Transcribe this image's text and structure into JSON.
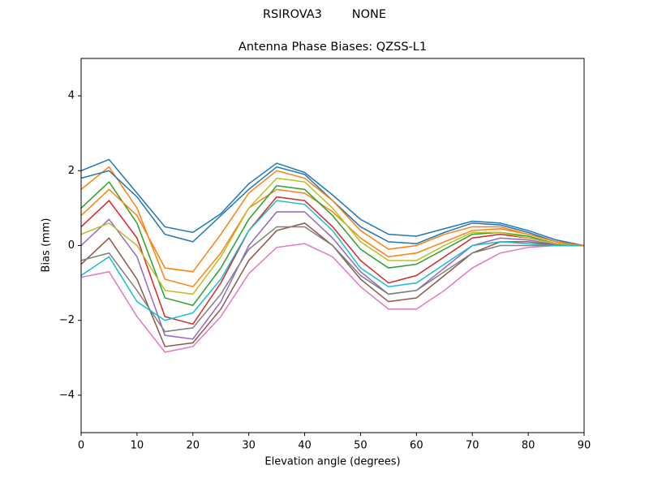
{
  "chart_data": {
    "type": "line",
    "suptitle": "RSIROVA3        NONE",
    "title": "Antenna Phase Biases: QZSS-L1",
    "x_label": "Elevation angle (degrees)",
    "y_label": "Bias (mm)",
    "x": [
      0,
      5,
      10,
      15,
      20,
      25,
      30,
      35,
      40,
      45,
      50,
      55,
      60,
      65,
      70,
      75,
      80,
      85,
      90
    ],
    "xlim": [
      0,
      90
    ],
    "xticks": [
      0,
      10,
      20,
      30,
      40,
      50,
      60,
      70,
      80,
      90
    ],
    "ylim": [
      -5,
      5
    ],
    "yticks": [
      {
        "value": -4,
        "label": "−4"
      },
      {
        "value": -2,
        "label": "−2"
      },
      0,
      2,
      4
    ],
    "grid": false,
    "series": [
      {
        "color": "#1f77b4",
        "values": [
          2.0,
          2.3,
          1.4,
          0.5,
          0.35,
          0.85,
          1.65,
          2.2,
          1.95,
          1.35,
          0.7,
          0.3,
          0.25,
          0.45,
          0.65,
          0.6,
          0.4,
          0.15,
          0
        ]
      },
      {
        "color": "#ff7f0e",
        "values": [
          1.5,
          2.1,
          1.0,
          -0.9,
          -1.1,
          -0.2,
          1.0,
          1.5,
          1.4,
          0.9,
          0.2,
          -0.3,
          -0.2,
          0.1,
          0.4,
          0.45,
          0.3,
          0.1,
          0
        ]
      },
      {
        "color": "#2ca02c",
        "values": [
          1.0,
          1.7,
          0.6,
          -1.4,
          -1.6,
          -0.6,
          0.7,
          1.6,
          1.5,
          0.8,
          -0.1,
          -0.6,
          -0.5,
          -0.1,
          0.3,
          0.35,
          0.25,
          0.05,
          0
        ]
      },
      {
        "color": "#d62728",
        "values": [
          0.5,
          1.2,
          0.2,
          -1.9,
          -2.1,
          -1.0,
          0.4,
          1.3,
          1.2,
          0.5,
          -0.4,
          -1.0,
          -0.8,
          -0.3,
          0.2,
          0.3,
          0.2,
          0.05,
          0
        ]
      },
      {
        "color": "#9467bd",
        "values": [
          0.0,
          0.7,
          -0.3,
          -2.4,
          -2.5,
          -1.5,
          0.0,
          0.9,
          0.9,
          0.2,
          -0.7,
          -1.3,
          -1.2,
          -0.6,
          0.0,
          0.2,
          0.15,
          0.02,
          0
        ]
      },
      {
        "color": "#8c564b",
        "values": [
          -0.5,
          0.2,
          -0.9,
          -2.7,
          -2.6,
          -1.7,
          -0.4,
          0.4,
          0.6,
          0.0,
          -0.9,
          -1.5,
          -1.4,
          -0.8,
          -0.2,
          0.1,
          0.1,
          0.0,
          0
        ]
      },
      {
        "color": "#e377c2",
        "values": [
          -0.85,
          -0.7,
          -1.9,
          -2.85,
          -2.7,
          -1.9,
          -0.75,
          -0.05,
          0.05,
          -0.3,
          -1.1,
          -1.7,
          -1.7,
          -1.2,
          -0.6,
          -0.2,
          -0.05,
          0,
          0
        ]
      },
      {
        "color": "#7f7f7f",
        "values": [
          -0.4,
          -0.2,
          -1.2,
          -2.3,
          -2.2,
          -1.3,
          -0.1,
          0.5,
          0.5,
          0.0,
          -0.8,
          -1.3,
          -1.2,
          -0.7,
          -0.2,
          0.0,
          0.0,
          0.0,
          0
        ]
      },
      {
        "color": "#bcbd22",
        "values": [
          0.3,
          0.6,
          0.0,
          -1.2,
          -1.3,
          -0.3,
          1.0,
          1.8,
          1.7,
          1.0,
          0.1,
          -0.4,
          -0.4,
          0.0,
          0.35,
          0.35,
          0.2,
          0.05,
          0
        ]
      },
      {
        "color": "#17becf",
        "values": [
          -0.8,
          -0.3,
          -1.5,
          -2.0,
          -1.8,
          -0.9,
          0.4,
          1.2,
          1.1,
          0.4,
          -0.6,
          -1.1,
          -1.0,
          -0.5,
          0.0,
          0.1,
          0.05,
          0,
          0
        ]
      },
      {
        "color": "#1f77b4",
        "values": [
          1.8,
          2.0,
          1.3,
          0.3,
          0.1,
          0.8,
          1.5,
          2.1,
          1.9,
          1.2,
          0.5,
          0.1,
          0.05,
          0.35,
          0.6,
          0.55,
          0.35,
          0.1,
          0
        ]
      },
      {
        "color": "#ff7f0e",
        "values": [
          0.8,
          1.5,
          0.8,
          -0.6,
          -0.7,
          0.3,
          1.4,
          2.0,
          1.8,
          1.2,
          0.4,
          -0.1,
          0.0,
          0.3,
          0.5,
          0.5,
          0.3,
          0.1,
          0
        ]
      }
    ]
  }
}
